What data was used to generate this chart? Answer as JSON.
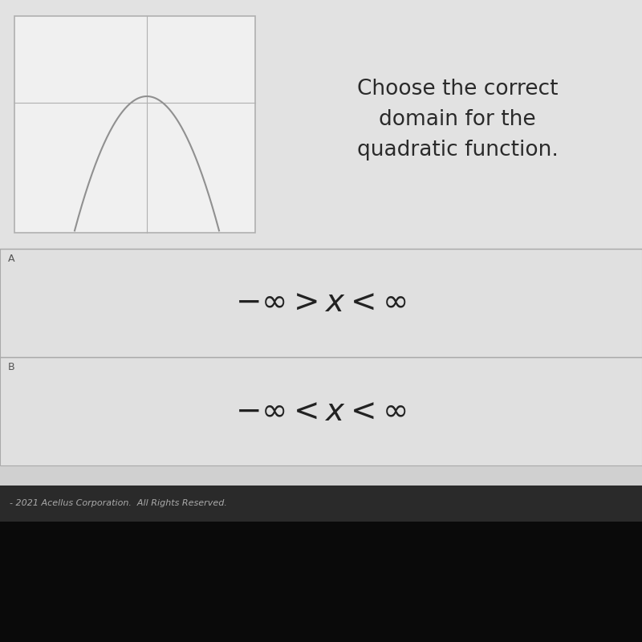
{
  "bg_color": "#d0d0d0",
  "top_panel_bg": "#e2e2e2",
  "graph_box_color": "#f0f0f0",
  "graph_line_color": "#b0b0b0",
  "parabola_color": "#909090",
  "title_text_line1": "Choose the correct",
  "title_text_line2": "domain for the",
  "title_text_line3": "quadratic function.",
  "option_a_label": "A",
  "option_b_label": "B",
  "option_a_text": "$-\\infty > x < \\infty$",
  "option_b_text": "$-\\infty < x < \\infty$",
  "footer_text": "- 2021 Acellus Corporation.  All Rights Reserved.",
  "option_box_bg": "#e0e0e0",
  "option_text_color": "#222222",
  "title_fontsize": 19,
  "option_fontsize": 28,
  "label_fontsize": 9,
  "footer_fontsize": 8,
  "dark_bar_color": "#1a1a1a",
  "bezel_color": "#0a0a0a",
  "divider_color": "#aaaaaa",
  "label_color": "#555555"
}
